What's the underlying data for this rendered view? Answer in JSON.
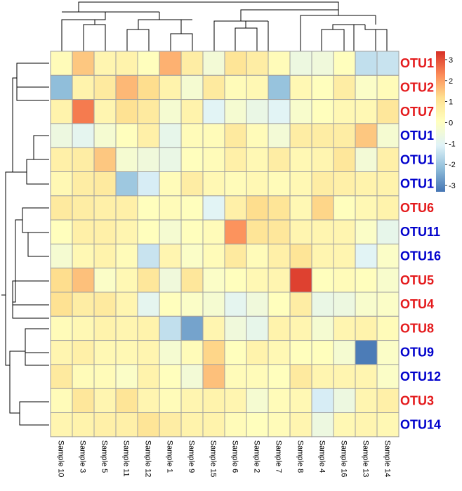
{
  "chart_data": {
    "type": "heatmap",
    "title": "",
    "columns": [
      "Sample 10",
      "Sample 3",
      "Sample 5",
      "Sample 11",
      "Sample 12",
      "Sample 1",
      "Sample 9",
      "Sample 15",
      "Sample 6",
      "Sample 2",
      "Sample 7",
      "Sample 8",
      "Sample 4",
      "Sample 16",
      "Sample 13",
      "Sample 14"
    ],
    "rows": [
      {
        "label": "OTU1",
        "color": "#e41a1c"
      },
      {
        "label": "OTU2",
        "color": "#e41a1c"
      },
      {
        "label": "OTU7",
        "color": "#e41a1c"
      },
      {
        "label": "OTU1",
        "color": "#0000cc"
      },
      {
        "label": "OTU1",
        "color": "#0000cc"
      },
      {
        "label": "OTU1",
        "color": "#0000cc"
      },
      {
        "label": "OTU6",
        "color": "#e41a1c"
      },
      {
        "label": "OTU11",
        "color": "#0000cc"
      },
      {
        "label": "OTU16",
        "color": "#0000cc"
      },
      {
        "label": "OTU5",
        "color": "#e41a1c"
      },
      {
        "label": "OTU4",
        "color": "#e41a1c"
      },
      {
        "label": "OTU8",
        "color": "#e41a1c"
      },
      {
        "label": "OTU9",
        "color": "#0000cc"
      },
      {
        "label": "OTU12",
        "color": "#0000cc"
      },
      {
        "label": "OTU3",
        "color": "#e41a1c"
      },
      {
        "label": "OTU14",
        "color": "#0000cc"
      }
    ],
    "values": [
      [
        0.2,
        1.5,
        0.4,
        0.5,
        0.1,
        1.8,
        0.7,
        -0.4,
        1.0,
        0.7,
        0.2,
        -0.6,
        -0.5,
        0.1,
        -1.5,
        -1.4
      ],
      [
        -2.2,
        0.5,
        0.8,
        1.7,
        1.2,
        0.5,
        -0.3,
        0.8,
        0.2,
        0.3,
        -2.1,
        0.3,
        0.1,
        0.7,
        -0.1,
        0.2
      ],
      [
        0.5,
        2.5,
        0.4,
        1.1,
        0.8,
        -0.3,
        0.5,
        -1.0,
        -0.3,
        -0.7,
        -1.0,
        -0.2,
        0.1,
        0.3,
        0.3,
        0.9
      ],
      [
        -0.6,
        -0.9,
        -0.3,
        0.1,
        0.6,
        -0.8,
        0.2,
        0.2,
        0.8,
        0.2,
        -0.4,
        0.7,
        0.7,
        0.7,
        1.5,
        -0.3
      ],
      [
        0.6,
        0.7,
        1.5,
        -0.3,
        -0.5,
        -0.7,
        0.1,
        0.2,
        0.6,
        0.3,
        0.7,
        0.3,
        0.4,
        0.9,
        -0.4,
        0.6
      ],
      [
        0.3,
        0.7,
        0.8,
        -2.0,
        -1.2,
        0.2,
        0.7,
        0.3,
        0.2,
        0.3,
        0.2,
        0.3,
        0.7,
        0.6,
        0.5,
        0.5
      ],
      [
        0.8,
        0.7,
        0.6,
        0.6,
        0.1,
        0.2,
        0.1,
        -1.0,
        0.6,
        1.2,
        1.0,
        0.3,
        1.3,
        0.1,
        0.3,
        0.5
      ],
      [
        0.1,
        0.6,
        0.6,
        0.4,
        0.1,
        -0.3,
        0.1,
        0.2,
        2.2,
        1.0,
        0.9,
        0.4,
        0.4,
        0.4,
        -0.1,
        -0.8
      ],
      [
        -0.3,
        0.3,
        0.5,
        0.2,
        -1.4,
        0.4,
        -0.1,
        0.2,
        0.8,
        0.2,
        0.6,
        1.0,
        0.4,
        0.4,
        -1.0,
        -0.1
      ],
      [
        1.2,
        1.6,
        -0.1,
        0.3,
        0.9,
        -0.5,
        0.9,
        -0.1,
        0.1,
        0.3,
        0.4,
        3.2,
        0.1,
        0.2,
        0.1,
        -0.2
      ],
      [
        1.1,
        0.7,
        0.8,
        0.4,
        -0.9,
        0.1,
        -0.1,
        -0.3,
        -0.9,
        -0.5,
        0.1,
        0.7,
        -0.7,
        -0.6,
        -0.2,
        -0.1
      ],
      [
        0.2,
        0.3,
        0.5,
        0.4,
        0.5,
        -1.5,
        -2.6,
        0.4,
        -0.5,
        -0.8,
        0.5,
        0.4,
        -0.3,
        0.4,
        0.5,
        0.2
      ],
      [
        0.4,
        0.6,
        0.3,
        0.3,
        0.4,
        -0.3,
        0.2,
        1.3,
        0.1,
        0.5,
        0.3,
        0.1,
        0.1,
        -0.3,
        -3.2,
        -0.1
      ],
      [
        0.8,
        0.2,
        0.2,
        -0.1,
        0.5,
        0.1,
        -0.4,
        1.6,
        0.2,
        0.2,
        0.1,
        0.8,
        0.4,
        0.4,
        0.4,
        -0.1
      ],
      [
        0.2,
        0.9,
        0.4,
        1.0,
        0.4,
        0.2,
        0.4,
        0.5,
        0.4,
        -0.3,
        0.2,
        0.3,
        -1.2,
        -0.6,
        0.4,
        0.6
      ],
      [
        0.4,
        0.5,
        0.6,
        0.6,
        1.0,
        0.7,
        0.5,
        0.5,
        0.2,
        0.1,
        0.2,
        0.4,
        -0.6,
        0.3,
        0.4,
        0.3
      ]
    ],
    "color_scale": {
      "min": -3.3,
      "max": 3.4,
      "stops": [
        "#4575b4",
        "#91bfdb",
        "#e0f3f8",
        "#ffffbf",
        "#fee090",
        "#fc8d59",
        "#d73027"
      ],
      "ticks": [
        3,
        2,
        1,
        0,
        -1,
        -2,
        -3
      ]
    },
    "legend_position": "top-right",
    "grid": true,
    "row_dendrogram": true,
    "column_dendrogram": true
  }
}
